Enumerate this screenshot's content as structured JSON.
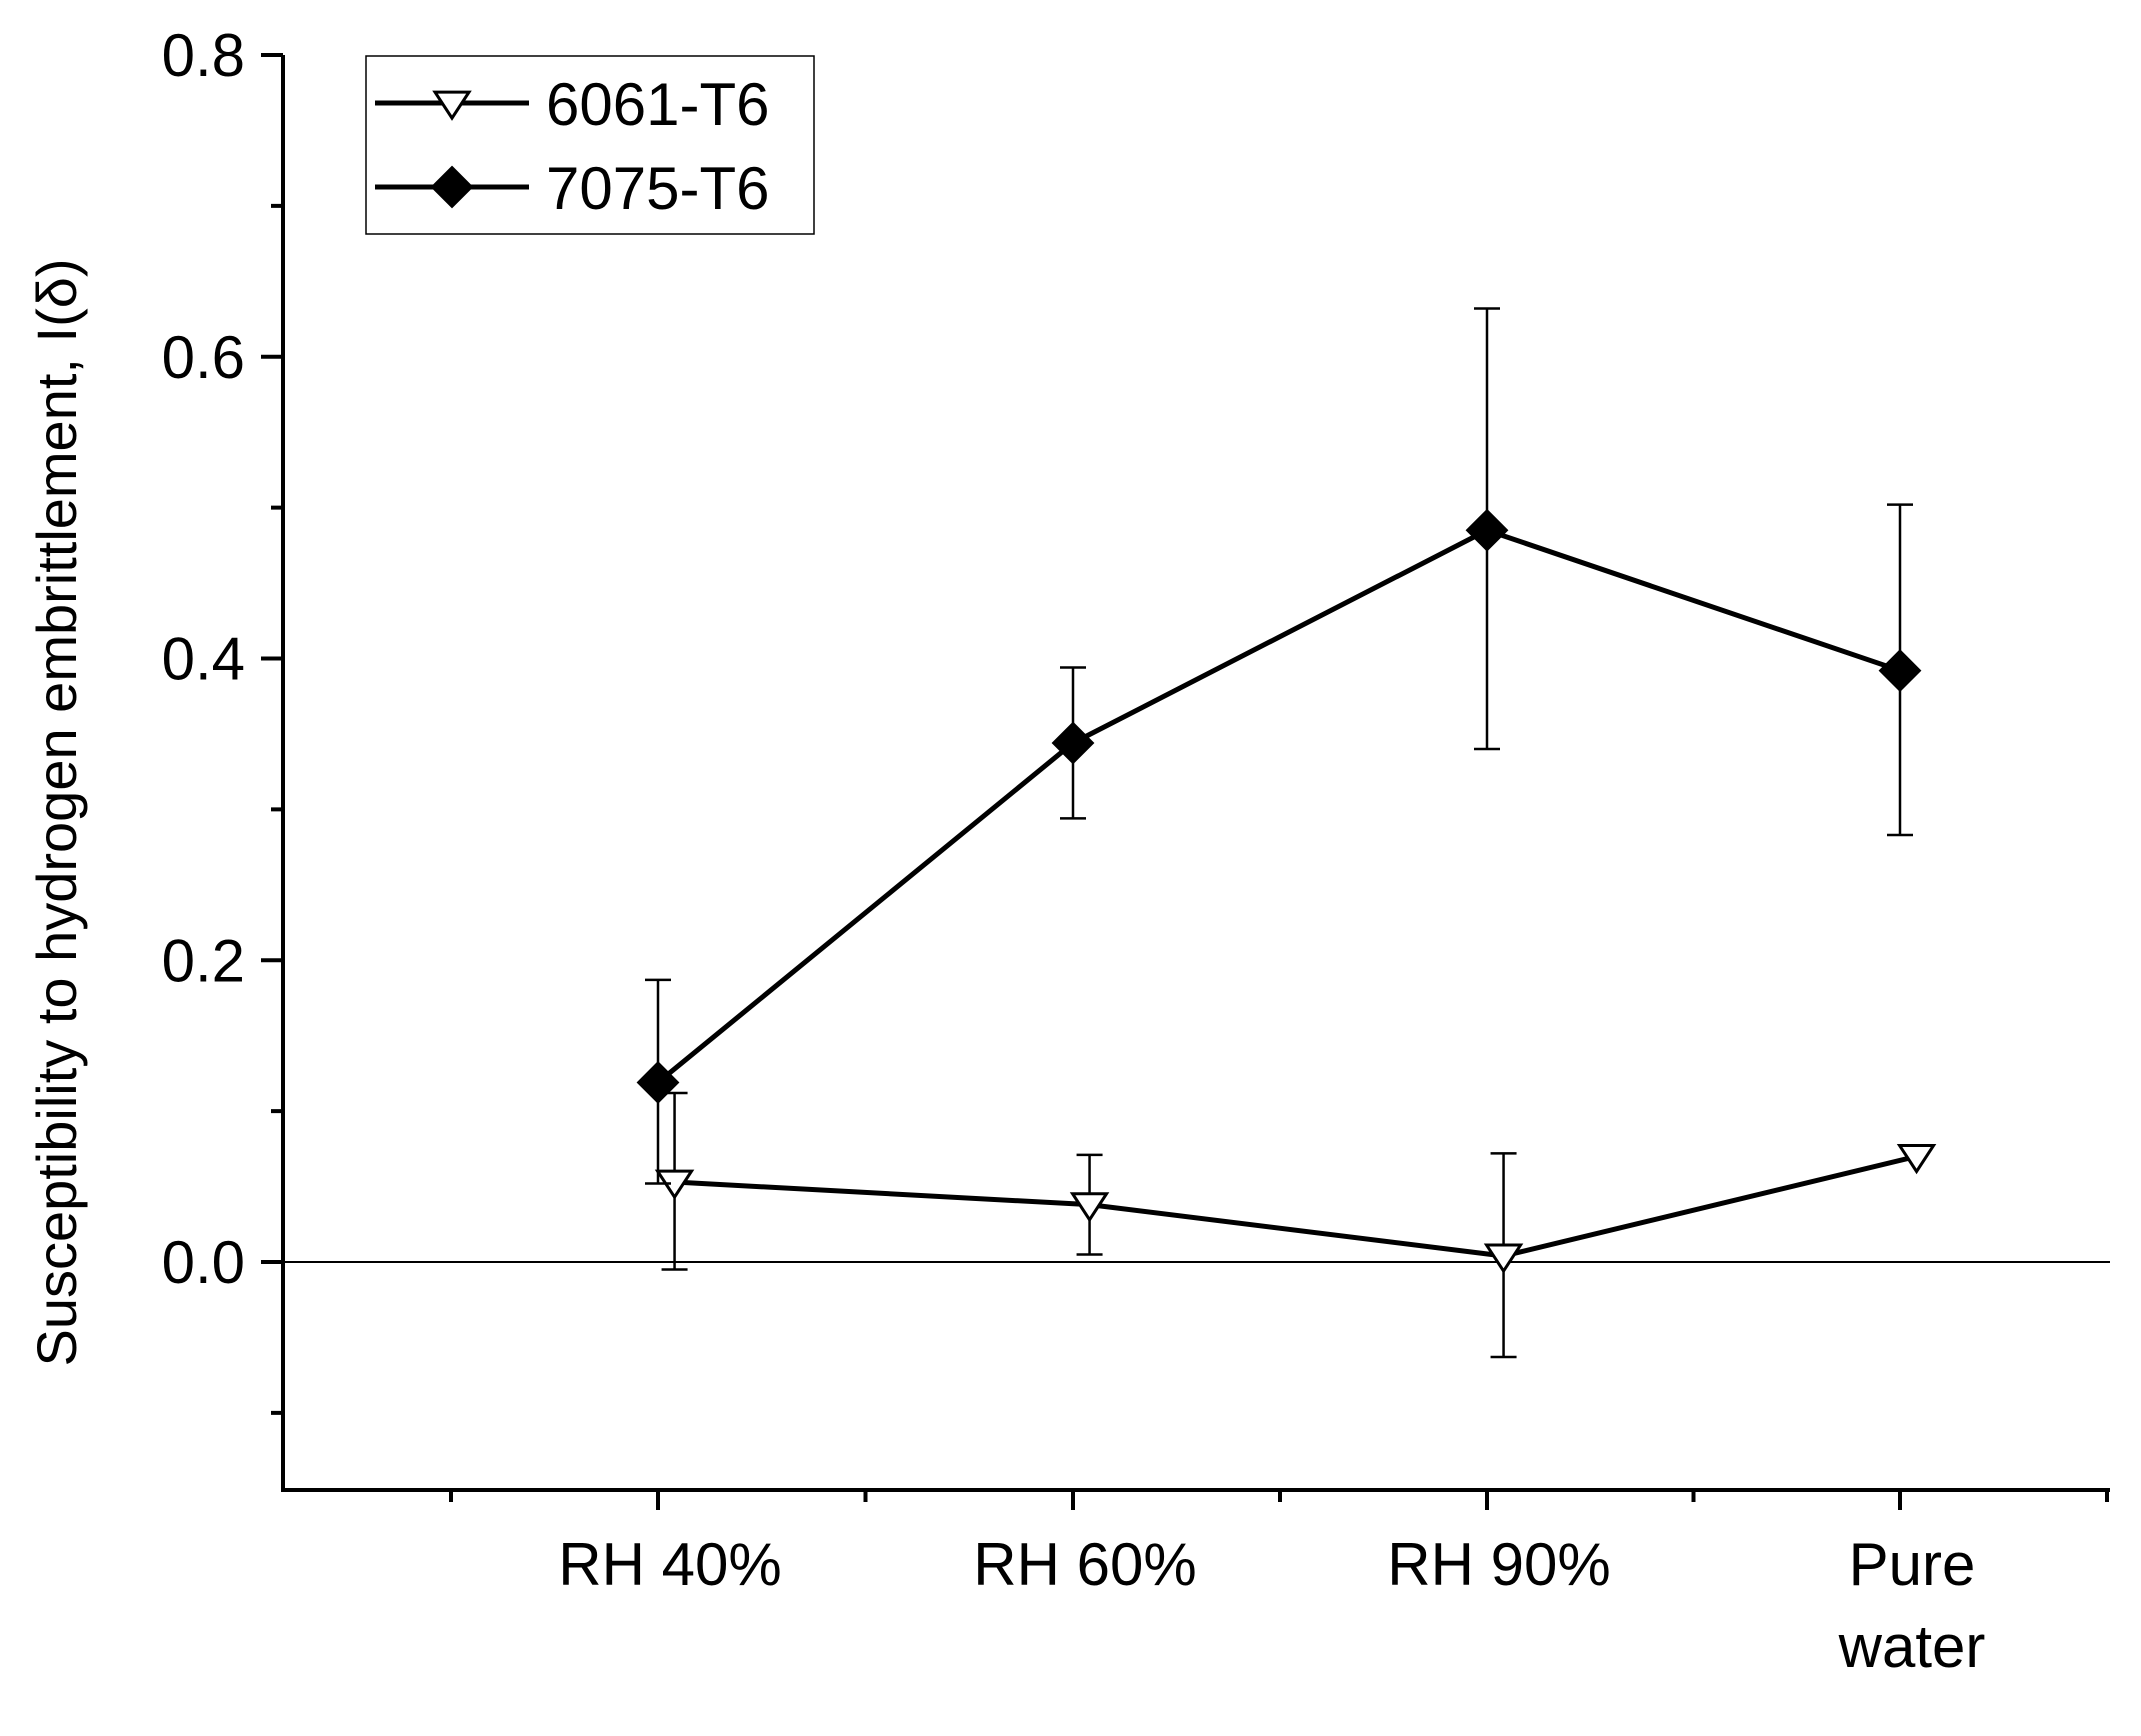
{
  "chart_data": {
    "type": "line",
    "title": "",
    "xlabel": "",
    "ylabel": "Susceptibility to hydrogen embrittlement, I(δ)",
    "categories": [
      "RH 40%",
      "RH 60%",
      "RH 90%",
      "Pure\nwater"
    ],
    "ylim": [
      -0.15,
      0.8
    ],
    "yticks": [
      0.0,
      0.2,
      0.4,
      0.6,
      0.8
    ],
    "ytick_labels": [
      "0.0",
      "0.2",
      "0.4",
      "0.6",
      "0.8"
    ],
    "zero_line": true,
    "grid": false,
    "legend_position": "top-left",
    "series": [
      {
        "name": "6061-T6",
        "marker": "triangle-down-open",
        "color": "#000000",
        "x_offset": 0.04,
        "values": [
          0.053,
          0.038,
          0.004,
          0.07
        ],
        "err_low": [
          -0.005,
          0.005,
          -0.063,
          null
        ],
        "err_high": [
          0.112,
          0.071,
          0.072,
          null
        ]
      },
      {
        "name": "7075-T6",
        "marker": "diamond-filled",
        "color": "#000000",
        "x_offset": 0.0,
        "values": [
          0.119,
          0.344,
          0.485,
          0.392
        ],
        "err_low": [
          0.052,
          0.294,
          0.34,
          0.283
        ],
        "err_high": [
          0.187,
          0.394,
          0.632,
          0.502
        ]
      }
    ]
  }
}
